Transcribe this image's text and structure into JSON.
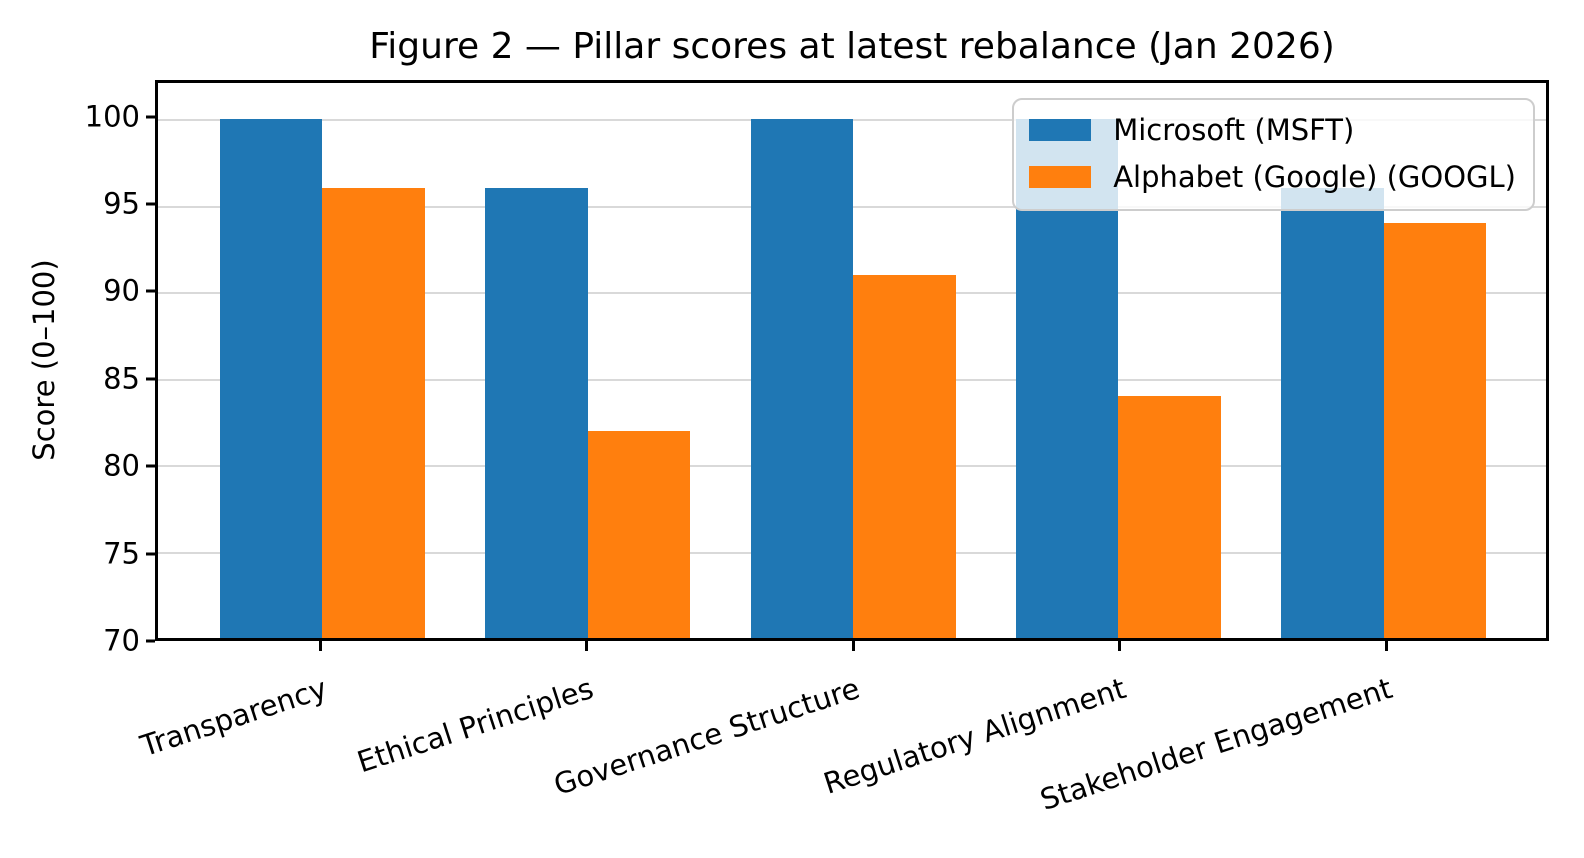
{
  "figure": {
    "title": "Figure 2 — Pillar scores at latest rebalance (Jan 2026)"
  },
  "chart_data": {
    "type": "bar",
    "title": "Figure 2 — Pillar scores at latest rebalance (Jan 2026)",
    "categories": [
      "Transparency",
      "Ethical Principles",
      "Governance Structure",
      "Regulatory Alignment",
      "Stakeholder Engagement"
    ],
    "series": [
      {
        "name": "Microsoft (MSFT)",
        "color": "#1f77b4",
        "values": [
          100,
          96,
          100,
          100,
          96
        ]
      },
      {
        "name": "Alphabet (Google) (GOOGL)",
        "color": "#ff7f0e",
        "values": [
          96,
          82,
          91,
          84,
          94
        ]
      }
    ],
    "xlabel": "",
    "ylabel": "Score (0–100)",
    "ylim": [
      70,
      102.1
    ],
    "yticks": [
      70,
      75,
      80,
      85,
      90,
      95,
      100
    ],
    "grid": true,
    "grid_color": "#d9d9d9",
    "legend_position": "upper right",
    "legend_framealpha": 0.8,
    "xtick_rotation_deg": -18,
    "background": "#ffffff",
    "spine_color": "#000000",
    "bar_colors": {
      "msft": "#1f77b4",
      "googl": "#ff7f0e"
    }
  }
}
